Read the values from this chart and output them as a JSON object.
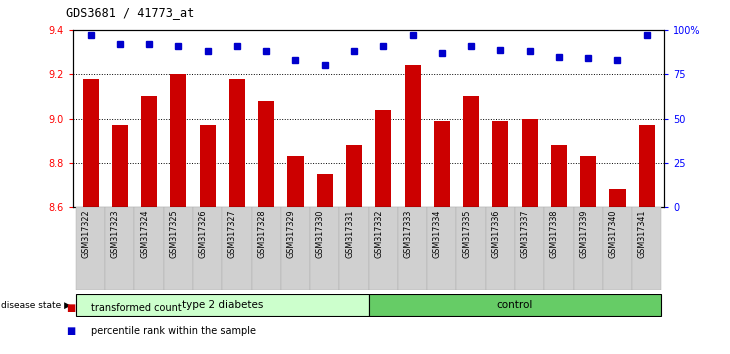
{
  "title": "GDS3681 / 41773_at",
  "samples": [
    "GSM317322",
    "GSM317323",
    "GSM317324",
    "GSM317325",
    "GSM317326",
    "GSM317327",
    "GSM317328",
    "GSM317329",
    "GSM317330",
    "GSM317331",
    "GSM317332",
    "GSM317333",
    "GSM317334",
    "GSM317335",
    "GSM317336",
    "GSM317337",
    "GSM317338",
    "GSM317339",
    "GSM317340",
    "GSM317341"
  ],
  "bar_values": [
    9.18,
    8.97,
    9.1,
    9.2,
    8.97,
    9.18,
    9.08,
    8.83,
    8.75,
    8.88,
    9.04,
    9.24,
    8.99,
    9.1,
    8.99,
    9.0,
    8.88,
    8.83,
    8.68,
    8.97
  ],
  "percentile_values": [
    97,
    92,
    92,
    91,
    88,
    91,
    88,
    83,
    80,
    88,
    91,
    97,
    87,
    91,
    89,
    88,
    85,
    84,
    83,
    97
  ],
  "ylim_left": [
    8.6,
    9.4
  ],
  "ylim_right": [
    0,
    100
  ],
  "yticks_left": [
    8.6,
    8.8,
    9.0,
    9.2,
    9.4
  ],
  "yticks_right": [
    0,
    25,
    50,
    75,
    100
  ],
  "ytick_labels_right": [
    "0",
    "25",
    "50",
    "75",
    "100%"
  ],
  "bar_color": "#cc0000",
  "dot_color": "#0000cc",
  "bar_bottom": 8.6,
  "group1_label": "type 2 diabetes",
  "group2_label": "control",
  "group1_count": 10,
  "group2_count": 10,
  "disease_state_label": "disease state",
  "group1_color": "#ccffcc",
  "group2_color": "#66cc66"
}
